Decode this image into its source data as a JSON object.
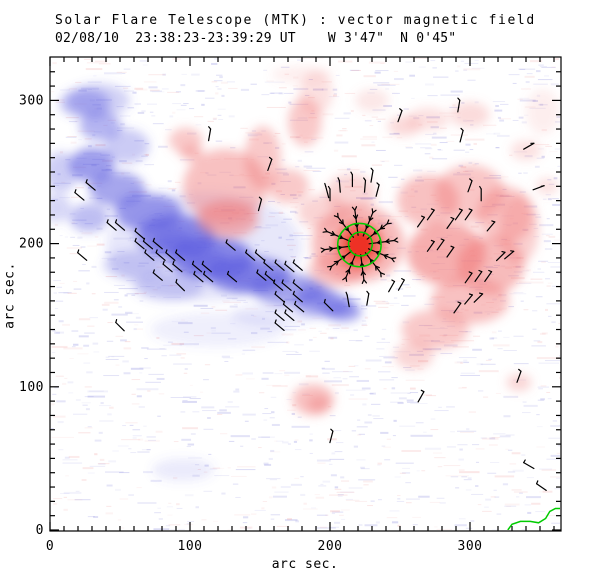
{
  "chart_data": {
    "type": "heatmap",
    "title": "Solar Flare Telescope (MTK) : vector magnetic field",
    "subtitle": "02/08/10  23:38:23-23:39:29 UT    W 3'47\"  N 0'45\"",
    "xlabel": "arc sec.",
    "ylabel": "arc sec.",
    "xlim": [
      0,
      365
    ],
    "ylim": [
      0,
      330
    ],
    "xticks": [
      0,
      100,
      200,
      300
    ],
    "yticks": [
      0,
      100,
      200,
      300
    ],
    "minor_tick_step": 10,
    "grid": false,
    "legend": "none",
    "colors": {
      "negative_polarity": "#5c5cdf",
      "positive_polarity": "#f07878",
      "spot_halo": "#ef5040",
      "spot_core": "#ee2f22",
      "contour": "#00cc00",
      "vector": "#000000",
      "axis": "#000000",
      "noise_blue": "#8888dd",
      "noise_pink": "#ee9999"
    },
    "negative_blobs": [
      [
        25,
        298,
        18,
        10,
        0.4
      ],
      [
        36,
        282,
        15,
        10,
        0.45
      ],
      [
        30,
        255,
        16,
        12,
        0.6
      ],
      [
        48,
        238,
        20,
        12,
        0.55
      ],
      [
        70,
        222,
        24,
        13,
        0.6
      ],
      [
        90,
        205,
        28,
        15,
        0.7
      ],
      [
        115,
        190,
        30,
        15,
        0.7
      ],
      [
        142,
        178,
        30,
        13,
        0.65
      ],
      [
        170,
        168,
        26,
        11,
        0.55
      ],
      [
        195,
        158,
        20,
        9,
        0.5
      ],
      [
        210,
        152,
        13,
        7,
        0.45
      ],
      [
        88,
        202,
        14,
        8,
        0.45
      ],
      [
        112,
        188,
        15,
        8,
        0.45
      ],
      [
        140,
        176,
        15,
        8,
        0.4
      ],
      [
        8,
        250,
        12,
        14,
        0.3
      ],
      [
        5,
        225,
        10,
        10,
        0.25
      ],
      [
        60,
        185,
        22,
        10,
        0.28
      ],
      [
        85,
        170,
        25,
        10,
        0.28
      ],
      [
        110,
        198,
        70,
        38,
        0.15
      ],
      [
        120,
        140,
        48,
        12,
        0.1
      ],
      [
        160,
        150,
        30,
        8,
        0.12
      ],
      [
        95,
        42,
        22,
        8,
        0.13
      ],
      [
        190,
        165,
        14,
        8,
        0.4
      ],
      [
        205,
        155,
        16,
        7,
        0.35
      ],
      [
        35,
        300,
        22,
        12,
        0.28
      ],
      [
        55,
        268,
        16,
        12,
        0.32
      ],
      [
        28,
        218,
        14,
        10,
        0.4
      ]
    ],
    "positive_blobs": [
      [
        97,
        272,
        12,
        9,
        0.4
      ],
      [
        101,
        263,
        8,
        5,
        0.45
      ],
      [
        125,
        240,
        30,
        26,
        0.45
      ],
      [
        127,
        217,
        22,
        13,
        0.55
      ],
      [
        152,
        260,
        13,
        22,
        0.4
      ],
      [
        170,
        240,
        15,
        12,
        0.4
      ],
      [
        182,
        285,
        12,
        17,
        0.4
      ],
      [
        195,
        222,
        18,
        12,
        0.32
      ],
      [
        205,
        182,
        20,
        12,
        0.45
      ],
      [
        220,
        200,
        33,
        27,
        0.5
      ],
      [
        215,
        235,
        18,
        14,
        0.3
      ],
      [
        253,
        282,
        12,
        7,
        0.28
      ],
      [
        270,
        287,
        15,
        8,
        0.22
      ],
      [
        300,
        290,
        14,
        9,
        0.26
      ],
      [
        340,
        265,
        11,
        7,
        0.22
      ],
      [
        355,
        240,
        8,
        6,
        0.22
      ],
      [
        352,
        292,
        12,
        16,
        0.13
      ],
      [
        270,
        230,
        22,
        18,
        0.45
      ],
      [
        300,
        235,
        25,
        20,
        0.42
      ],
      [
        325,
        220,
        20,
        20,
        0.42
      ],
      [
        283,
        193,
        28,
        22,
        0.6
      ],
      [
        315,
        185,
        24,
        20,
        0.5
      ],
      [
        335,
        210,
        14,
        24,
        0.35
      ],
      [
        300,
        160,
        28,
        16,
        0.45
      ],
      [
        275,
        140,
        24,
        14,
        0.4
      ],
      [
        260,
        122,
        14,
        10,
        0.3
      ],
      [
        188,
        91,
        15,
        11,
        0.45
      ],
      [
        192,
        88,
        8,
        6,
        0.4
      ],
      [
        335,
        103,
        9,
        6,
        0.3
      ],
      [
        190,
        305,
        12,
        15,
        0.22
      ],
      [
        230,
        300,
        12,
        8,
        0.18
      ],
      [
        180,
        318,
        22,
        6,
        0.12
      ]
    ],
    "sunspot": {
      "x": 221,
      "y": 199,
      "core_radius": 9,
      "halo_radius": 17,
      "contour_radii": [
        8.5,
        15.5
      ]
    },
    "sunspot_vector_field": {
      "center": [
        221,
        199
      ],
      "rings": [
        7,
        13,
        19
      ],
      "spokes_per_ring": 12,
      "spoke_length": 6
    },
    "vectors": [
      [
        29,
        240,
        -40
      ],
      [
        21,
        233,
        -40
      ],
      [
        44,
        212,
        -40
      ],
      [
        50,
        212,
        -40
      ],
      [
        64,
        206,
        -40
      ],
      [
        64,
        199,
        -40
      ],
      [
        70,
        199,
        -40
      ],
      [
        77,
        199,
        -40
      ],
      [
        71,
        191,
        -40
      ],
      [
        79,
        191,
        -40
      ],
      [
        86,
        191,
        -40
      ],
      [
        93,
        191,
        -40
      ],
      [
        84,
        183,
        -40
      ],
      [
        91,
        183,
        -40
      ],
      [
        105,
        183,
        -40
      ],
      [
        112,
        183,
        -40
      ],
      [
        77,
        177,
        -40
      ],
      [
        106,
        176,
        -40
      ],
      [
        113,
        176,
        -40
      ],
      [
        129,
        198,
        -40
      ],
      [
        130,
        176,
        -40
      ],
      [
        93,
        170,
        -45
      ],
      [
        23,
        191,
        -40
      ],
      [
        143,
        191,
        -40
      ],
      [
        150,
        191,
        -40
      ],
      [
        156,
        184,
        -40
      ],
      [
        164,
        184,
        -40
      ],
      [
        171,
        183,
        -40
      ],
      [
        177,
        184,
        -40
      ],
      [
        151,
        177,
        -40
      ],
      [
        157,
        176,
        -40
      ],
      [
        163,
        170,
        -40
      ],
      [
        169,
        170,
        -40
      ],
      [
        177,
        170,
        -40
      ],
      [
        50,
        142,
        -45
      ],
      [
        164,
        162,
        -40
      ],
      [
        177,
        162,
        -40
      ],
      [
        170,
        155,
        -40
      ],
      [
        178,
        155,
        -40
      ],
      [
        164,
        149,
        -40
      ],
      [
        171,
        149,
        -40
      ],
      [
        164,
        142,
        -40
      ],
      [
        199,
        156,
        -45
      ],
      [
        114,
        276,
        80
      ],
      [
        157,
        255,
        70
      ],
      [
        150,
        227,
        75
      ],
      [
        200,
        234,
        90
      ],
      [
        308,
        234,
        90
      ],
      [
        230,
        247,
        80
      ],
      [
        265,
        215,
        55
      ],
      [
        272,
        220,
        55
      ],
      [
        286,
        214,
        55
      ],
      [
        292,
        220,
        55
      ],
      [
        299,
        220,
        55
      ],
      [
        315,
        212,
        50
      ],
      [
        272,
        198,
        55
      ],
      [
        279,
        199,
        55
      ],
      [
        286,
        194,
        55
      ],
      [
        299,
        176,
        55
      ],
      [
        306,
        177,
        55
      ],
      [
        313,
        177,
        55
      ],
      [
        322,
        191,
        45
      ],
      [
        328,
        192,
        40
      ],
      [
        244,
        170,
        60
      ],
      [
        251,
        171,
        60
      ],
      [
        291,
        155,
        55
      ],
      [
        299,
        161,
        50
      ],
      [
        306,
        162,
        45
      ],
      [
        265,
        93,
        60
      ],
      [
        335,
        107,
        70
      ],
      [
        342,
        268,
        30
      ],
      [
        349,
        239,
        20
      ],
      [
        300,
        240,
        70
      ],
      [
        294,
        275,
        75
      ],
      [
        292,
        296,
        80
      ],
      [
        250,
        289,
        70
      ],
      [
        342,
        45,
        -30
      ],
      [
        351,
        30,
        -35
      ],
      [
        201,
        65,
        75
      ],
      [
        207,
        240,
        95
      ],
      [
        216,
        244,
        90
      ],
      [
        225,
        240,
        85
      ],
      [
        234,
        237,
        75
      ],
      [
        198,
        236,
        105
      ],
      [
        213,
        160,
        -80
      ],
      [
        227,
        161,
        -100
      ]
    ],
    "limb_contour": [
      [
        327,
        0
      ],
      [
        330,
        4
      ],
      [
        336,
        6
      ],
      [
        343,
        6
      ],
      [
        349,
        5
      ],
      [
        354,
        8
      ],
      [
        357,
        13
      ],
      [
        361,
        15
      ],
      [
        365,
        15
      ]
    ]
  }
}
